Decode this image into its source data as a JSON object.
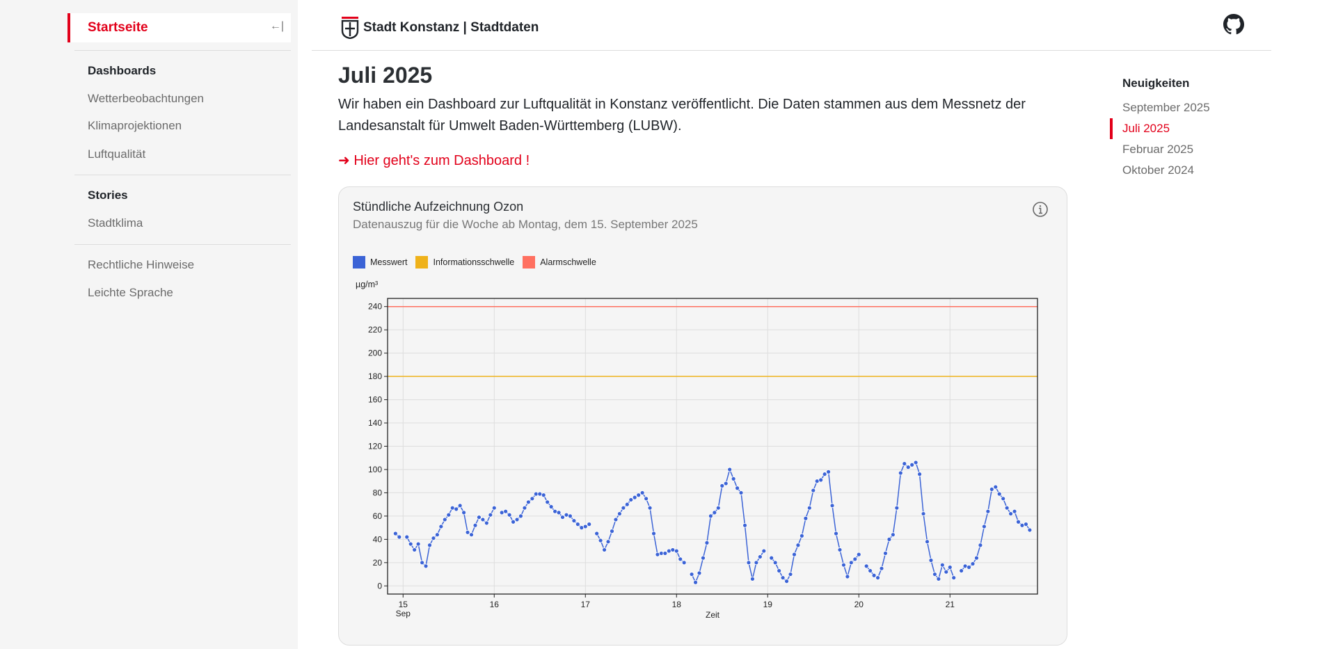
{
  "sidebar": {
    "home": "Startseite",
    "collapse_icon": "←|",
    "sections": [
      {
        "heading": "Dashboards",
        "items": [
          "Wetterbeobachtungen",
          "Klimaprojektionen",
          "Luftqualität"
        ]
      },
      {
        "heading": "Stories",
        "items": [
          "Stadtklima"
        ]
      }
    ],
    "footer_items": [
      "Rechtliche Hinweise",
      "Leichte Sprache"
    ]
  },
  "header": {
    "brand": "Stadt Konstanz | Stadtdaten"
  },
  "main": {
    "title": "Juli 2025",
    "paragraph": "Wir haben ein Dashboard zur Luftqualität in Konstanz veröffentlicht. Die Daten stammen aus dem Messnetz der Landesanstalt für Umwelt Baden-Württemberg (LUBW).",
    "link": "➜ Hier geht's zum Dashboard !"
  },
  "card": {
    "title": "Stündliche Aufzeichnung Ozon",
    "subtitle": "Datenauszug für die Woche ab Montag, dem 15. September 2025"
  },
  "toc": {
    "heading": "Neuigkeiten",
    "items": [
      "September 2025",
      "Juli 2025",
      "Februar 2025",
      "Oktober 2024"
    ],
    "active": 1
  },
  "colors": {
    "accent": "#e2001a",
    "series": "#3b63d6",
    "info": "#efb21a",
    "alarm": "#ff7060"
  },
  "chart_data": {
    "type": "line",
    "ylabel": "µg/m³",
    "xlabel": "Zeit",
    "legend": [
      "Messwert",
      "Informationsschwelle",
      "Alarmschwelle"
    ],
    "thresholds": {
      "Informationsschwelle": 180,
      "Alarmschwelle": 240
    },
    "ylim": [
      -7,
      247
    ],
    "yticks": [
      0,
      20,
      40,
      60,
      80,
      100,
      120,
      140,
      160,
      180,
      200,
      220,
      240
    ],
    "xlim": [
      14.83,
      21.96
    ],
    "xticks": [
      15,
      16,
      17,
      18,
      19,
      20,
      21
    ],
    "xtick_sub": {
      "15": "Sep"
    },
    "start_day": 14.9167,
    "step_hours": 1,
    "values": [
      45,
      42,
      null,
      42,
      36,
      31,
      36,
      20,
      17,
      35,
      41,
      44,
      51,
      57,
      61,
      67,
      66,
      69,
      63,
      46,
      44,
      52,
      59,
      57,
      54,
      61,
      67,
      null,
      63,
      64,
      61,
      55,
      57,
      60,
      67,
      72,
      75,
      79,
      79,
      78,
      72,
      68,
      64,
      63,
      59,
      61,
      60,
      56,
      53,
      50,
      51,
      53,
      null,
      45,
      39,
      31,
      38,
      47,
      57,
      62,
      67,
      70,
      74,
      76,
      78,
      80,
      75,
      67,
      45,
      27,
      28,
      28,
      30,
      31,
      30,
      23,
      20,
      null,
      10,
      3,
      11,
      24,
      37,
      60,
      63,
      67,
      86,
      88,
      100,
      92,
      84,
      80,
      52,
      20,
      6,
      20,
      25,
      30,
      null,
      24,
      20,
      13,
      7,
      4,
      10,
      27,
      35,
      43,
      58,
      67,
      82,
      90,
      91,
      96,
      98,
      69,
      45,
      31,
      18,
      8,
      20,
      23,
      27,
      null,
      17,
      13,
      9,
      7,
      15,
      28,
      40,
      44,
      67,
      97,
      105,
      102,
      104,
      106,
      96,
      62,
      38,
      22,
      10,
      6,
      18,
      12,
      16,
      7,
      null,
      13,
      17,
      16,
      19,
      24,
      35,
      51,
      64,
      83,
      85,
      79,
      75,
      67,
      62,
      64,
      55,
      52,
      53,
      48
    ]
  }
}
